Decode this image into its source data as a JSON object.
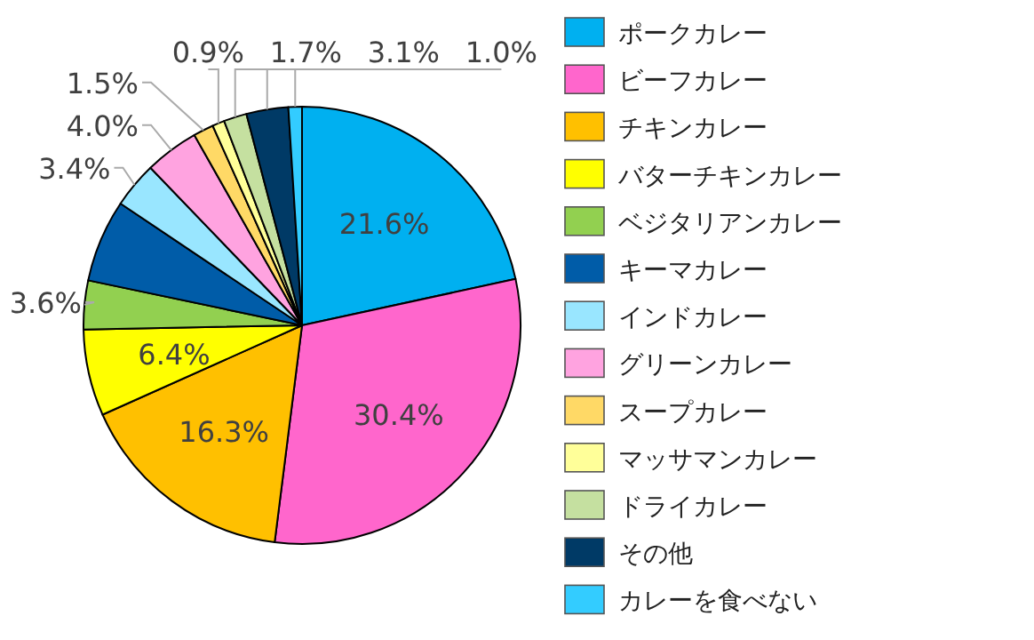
{
  "chart_data": {
    "type": "pie",
    "categories": [
      "ポークカレー",
      "ビーフカレー",
      "チキンカレー",
      "バターチキンカレー",
      "ベジタリアンカレー",
      "キーマカレー",
      "インドカレー",
      "グリーンカレー",
      "スープカレー",
      "マッサマンカレー",
      "ドライカレー",
      "その他",
      "カレーを食べない"
    ],
    "values": [
      21.6,
      30.4,
      16.3,
      6.4,
      3.6,
      6.1,
      3.4,
      4.0,
      1.5,
      0.9,
      1.7,
      3.1,
      1.0
    ],
    "value_labels": [
      "21.6%",
      "30.4%",
      "16.3%",
      "6.4%",
      "3.6%",
      null,
      "3.4%",
      "4.0%",
      "1.5%",
      "0.9%",
      "1.7%",
      "3.1%",
      "1.0%"
    ],
    "colors": [
      "#00b0f0",
      "#ff66cc",
      "#ffc000",
      "#ffff00",
      "#92d050",
      "#005ca8",
      "#99e6ff",
      "#ffa3e0",
      "#ffd966",
      "#ffff99",
      "#c5e0a0",
      "#003a66",
      "#33ccff"
    ],
    "legend": "right"
  }
}
